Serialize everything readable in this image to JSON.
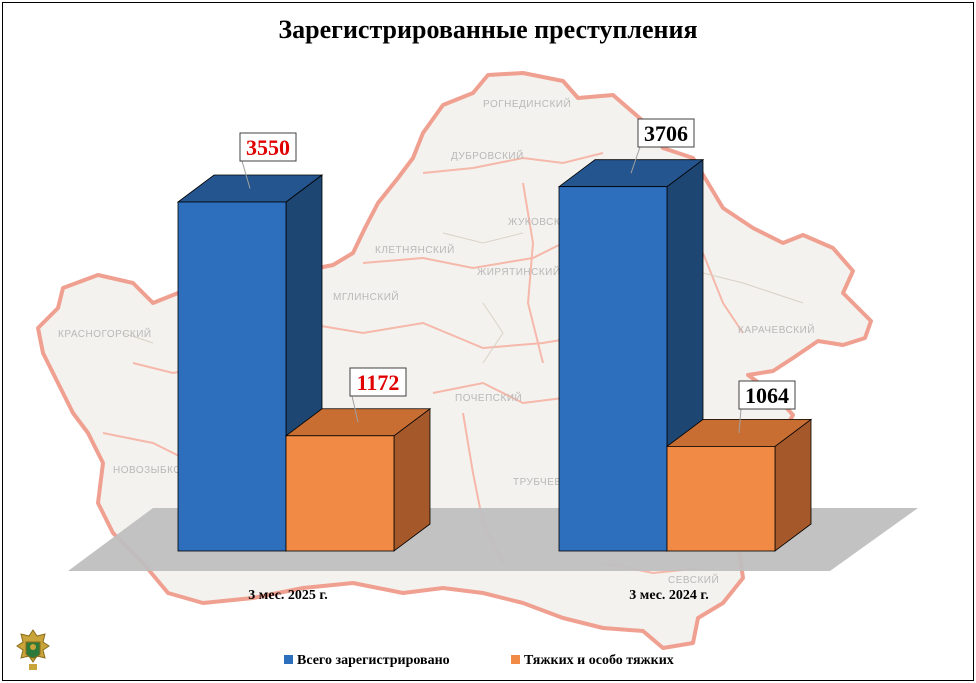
{
  "chart_data": {
    "type": "bar",
    "title": "Зарегистрированные преступления",
    "categories": [
      "3 мес. 2025 г.",
      "3 мес. 2024 г."
    ],
    "series": [
      {
        "name": "Всего зарегистрировано",
        "values": [
          3550,
          3706
        ],
        "label_color": [
          "#e00000",
          "#000000"
        ]
      },
      {
        "name": "Тяжких и особо тяжких",
        "values": [
          1172,
          1064
        ],
        "label_color": [
          "#e00000",
          "#000000"
        ]
      }
    ],
    "ylim": [
      0,
      4000
    ],
    "grid": false,
    "legend": "bottom",
    "colors": {
      "series1_front": "#2e6fbd",
      "series1_side": "#1d4673",
      "series1_top": "#24558f",
      "series2_front": "#f08a44",
      "series2_side": "#a5582a",
      "series2_top": "#c96e33",
      "floor": "#bdbdbd",
      "map_border": "#f0a090",
      "map_fill": "#f4f2ee"
    }
  },
  "background_map_labels": [
    "РОГНЕДИНСКИЙ",
    "ДУБРОВСКИЙ",
    "ЖУКОВСКИЙ",
    "КЛЕТНЯНСКИЙ",
    "ЖИРЯТИНСКИЙ",
    "МГЛИНСКИЙ",
    "ПОЧЕПСКИЙ",
    "КАРАЧЕВСКИЙ",
    "ТРУБЧЕВСКИЙ",
    "СЕВСКИЙ",
    "КРАСНОГОРСКИЙ",
    "НОВОЗЫБКОВСКИЙ"
  ],
  "logo_icon": "prosecutor-emblem-icon"
}
